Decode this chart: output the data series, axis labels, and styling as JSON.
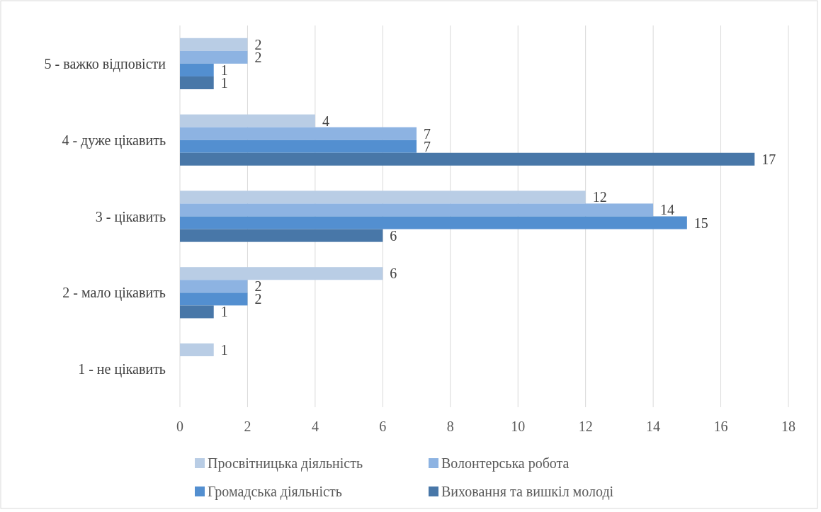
{
  "chart_data": {
    "type": "bar",
    "orientation": "horizontal",
    "categories": [
      "5 - важко відповісти",
      "4 - дуже цікавить",
      "3 - цікавить",
      "2 - мало цікавить",
      "1 - не цікавить"
    ],
    "series": [
      {
        "name": "Просвітницька діяльність",
        "color": "#b9cde5",
        "values": [
          2,
          4,
          12,
          6,
          1
        ]
      },
      {
        "name": "Волонтерська робота",
        "color": "#8db3e2",
        "values": [
          2,
          7,
          14,
          2,
          null
        ]
      },
      {
        "name": "Громадська діяльність",
        "color": "#538fd0",
        "values": [
          1,
          7,
          15,
          2,
          null
        ]
      },
      {
        "name": "Виховання та вишкіл молоді",
        "color": "#4877a8",
        "values": [
          1,
          17,
          6,
          1,
          null
        ]
      }
    ],
    "xlim": [
      0,
      18
    ],
    "xticks": [
      0,
      2,
      4,
      6,
      8,
      10,
      12,
      14,
      16,
      18
    ],
    "grid": "x",
    "legend": "bottom",
    "data_labels": true
  }
}
